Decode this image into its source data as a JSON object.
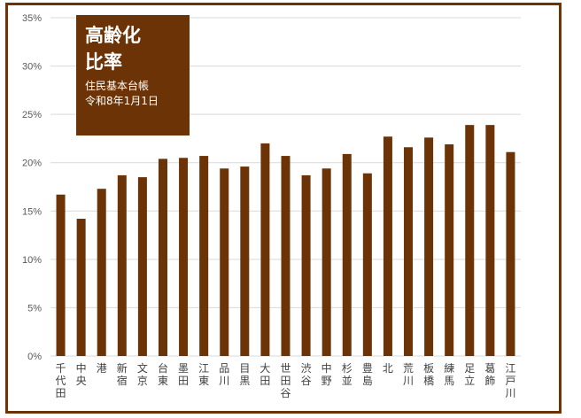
{
  "chart_data": {
    "type": "bar",
    "title_lines": [
      "高齢化",
      "比率"
    ],
    "subtitle_lines": [
      "住民基本台帳",
      "令和8年1月1日"
    ],
    "categories": [
      "千代田",
      "中央",
      "港",
      "新宿",
      "文京",
      "台東",
      "墨田",
      "江東",
      "品川",
      "目黒",
      "大田",
      "世田谷",
      "渋谷",
      "中野",
      "杉並",
      "豊島",
      "北",
      "荒川",
      "板橋",
      "練馬",
      "足立",
      "葛飾",
      "江戸川"
    ],
    "values": [
      16.7,
      14.2,
      17.3,
      18.7,
      18.5,
      20.4,
      20.5,
      20.7,
      19.4,
      19.6,
      22.0,
      20.7,
      18.7,
      19.4,
      20.9,
      18.9,
      22.7,
      21.6,
      22.6,
      21.9,
      23.9,
      23.9,
      21.1
    ],
    "ylim": [
      0,
      35
    ],
    "yticks": [
      "0%",
      "5%",
      "10%",
      "15%",
      "20%",
      "25%",
      "30%",
      "35%"
    ],
    "grid": true,
    "colors": {
      "bar": "#6b3306",
      "frame": "#6b3306",
      "title_box": "#6b3306",
      "grid": "#d9d9d9"
    }
  }
}
